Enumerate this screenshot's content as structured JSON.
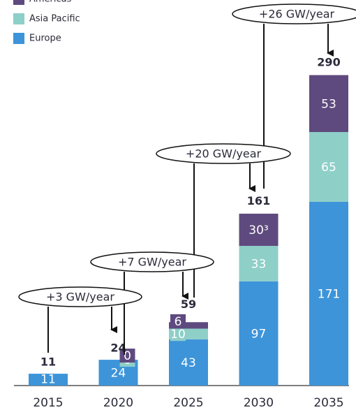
{
  "chart_data": {
    "type": "stacked-bar",
    "categories": [
      "2015",
      "2020",
      "2025",
      "2030",
      "2035"
    ],
    "series": [
      {
        "name": "Europe",
        "color": "#3d94d9",
        "values": [
          11,
          24,
          43,
          97,
          171
        ]
      },
      {
        "name": "Asia Pacific",
        "color": "#8ecfc8",
        "values": [
          null,
          0,
          10,
          33,
          65
        ]
      },
      {
        "name": "Americas",
        "color": "#5e4a7e",
        "values": [
          null,
          0,
          6,
          30,
          53
        ],
        "value_labels": [
          null,
          "0",
          "6",
          "30³",
          "53"
        ]
      }
    ],
    "totals": [
      11,
      24,
      59,
      161,
      290
    ],
    "annotations": [
      "+3 GW/year",
      "+7 GW/year",
      "+20 GW/year",
      "+26 GW/year"
    ]
  }
}
